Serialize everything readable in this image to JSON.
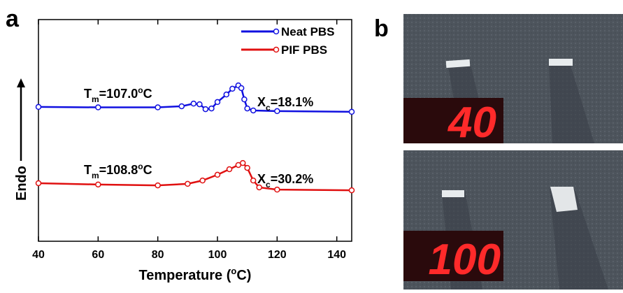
{
  "chart_data": {
    "type": "line",
    "xlabel": {
      "text": "Temperature (",
      "sup": "o",
      "tail": "C)"
    },
    "ylabel": "Endo",
    "xlim": [
      40,
      145
    ],
    "ylim": [
      0,
      10
    ],
    "xticks": [
      40,
      60,
      80,
      100,
      120,
      140
    ],
    "legend": "upper right",
    "series": [
      {
        "name": "Neat PBS",
        "color": "#1010e0",
        "x": [
          40,
          60,
          80,
          88,
          92,
          94,
          96,
          98,
          100,
          103,
          105,
          107,
          108,
          109,
          110,
          112,
          120,
          145
        ],
        "values": [
          6.06,
          6.04,
          6.04,
          6.09,
          6.21,
          6.18,
          5.96,
          5.99,
          6.28,
          6.62,
          6.88,
          7.03,
          6.91,
          6.4,
          5.99,
          5.9,
          5.87,
          5.84
        ]
      },
      {
        "name": "PIF PBS",
        "color": "#e01010",
        "x": [
          40,
          60,
          80,
          90,
          95,
          100,
          104,
          107,
          108.5,
          110,
          112,
          114,
          120,
          145
        ],
        "values": [
          2.62,
          2.56,
          2.52,
          2.59,
          2.74,
          3.0,
          3.25,
          3.44,
          3.53,
          3.31,
          2.74,
          2.43,
          2.33,
          2.3
        ]
      }
    ],
    "annotations": [
      {
        "base": "T",
        "sub": "m",
        "text": "=107.0",
        "sup": "o",
        "tail": "C"
      },
      {
        "base": "X",
        "sub": "c",
        "text": "=18.1%"
      },
      {
        "base": "T",
        "sub": "m",
        "text": "=108.8",
        "sup": "o",
        "tail": "C"
      },
      {
        "base": "X",
        "sub": "c",
        "text": "=30.2%"
      }
    ]
  },
  "panels": [
    "a",
    "b"
  ],
  "photos": [
    {
      "display": "40"
    },
    {
      "display": "100"
    }
  ]
}
